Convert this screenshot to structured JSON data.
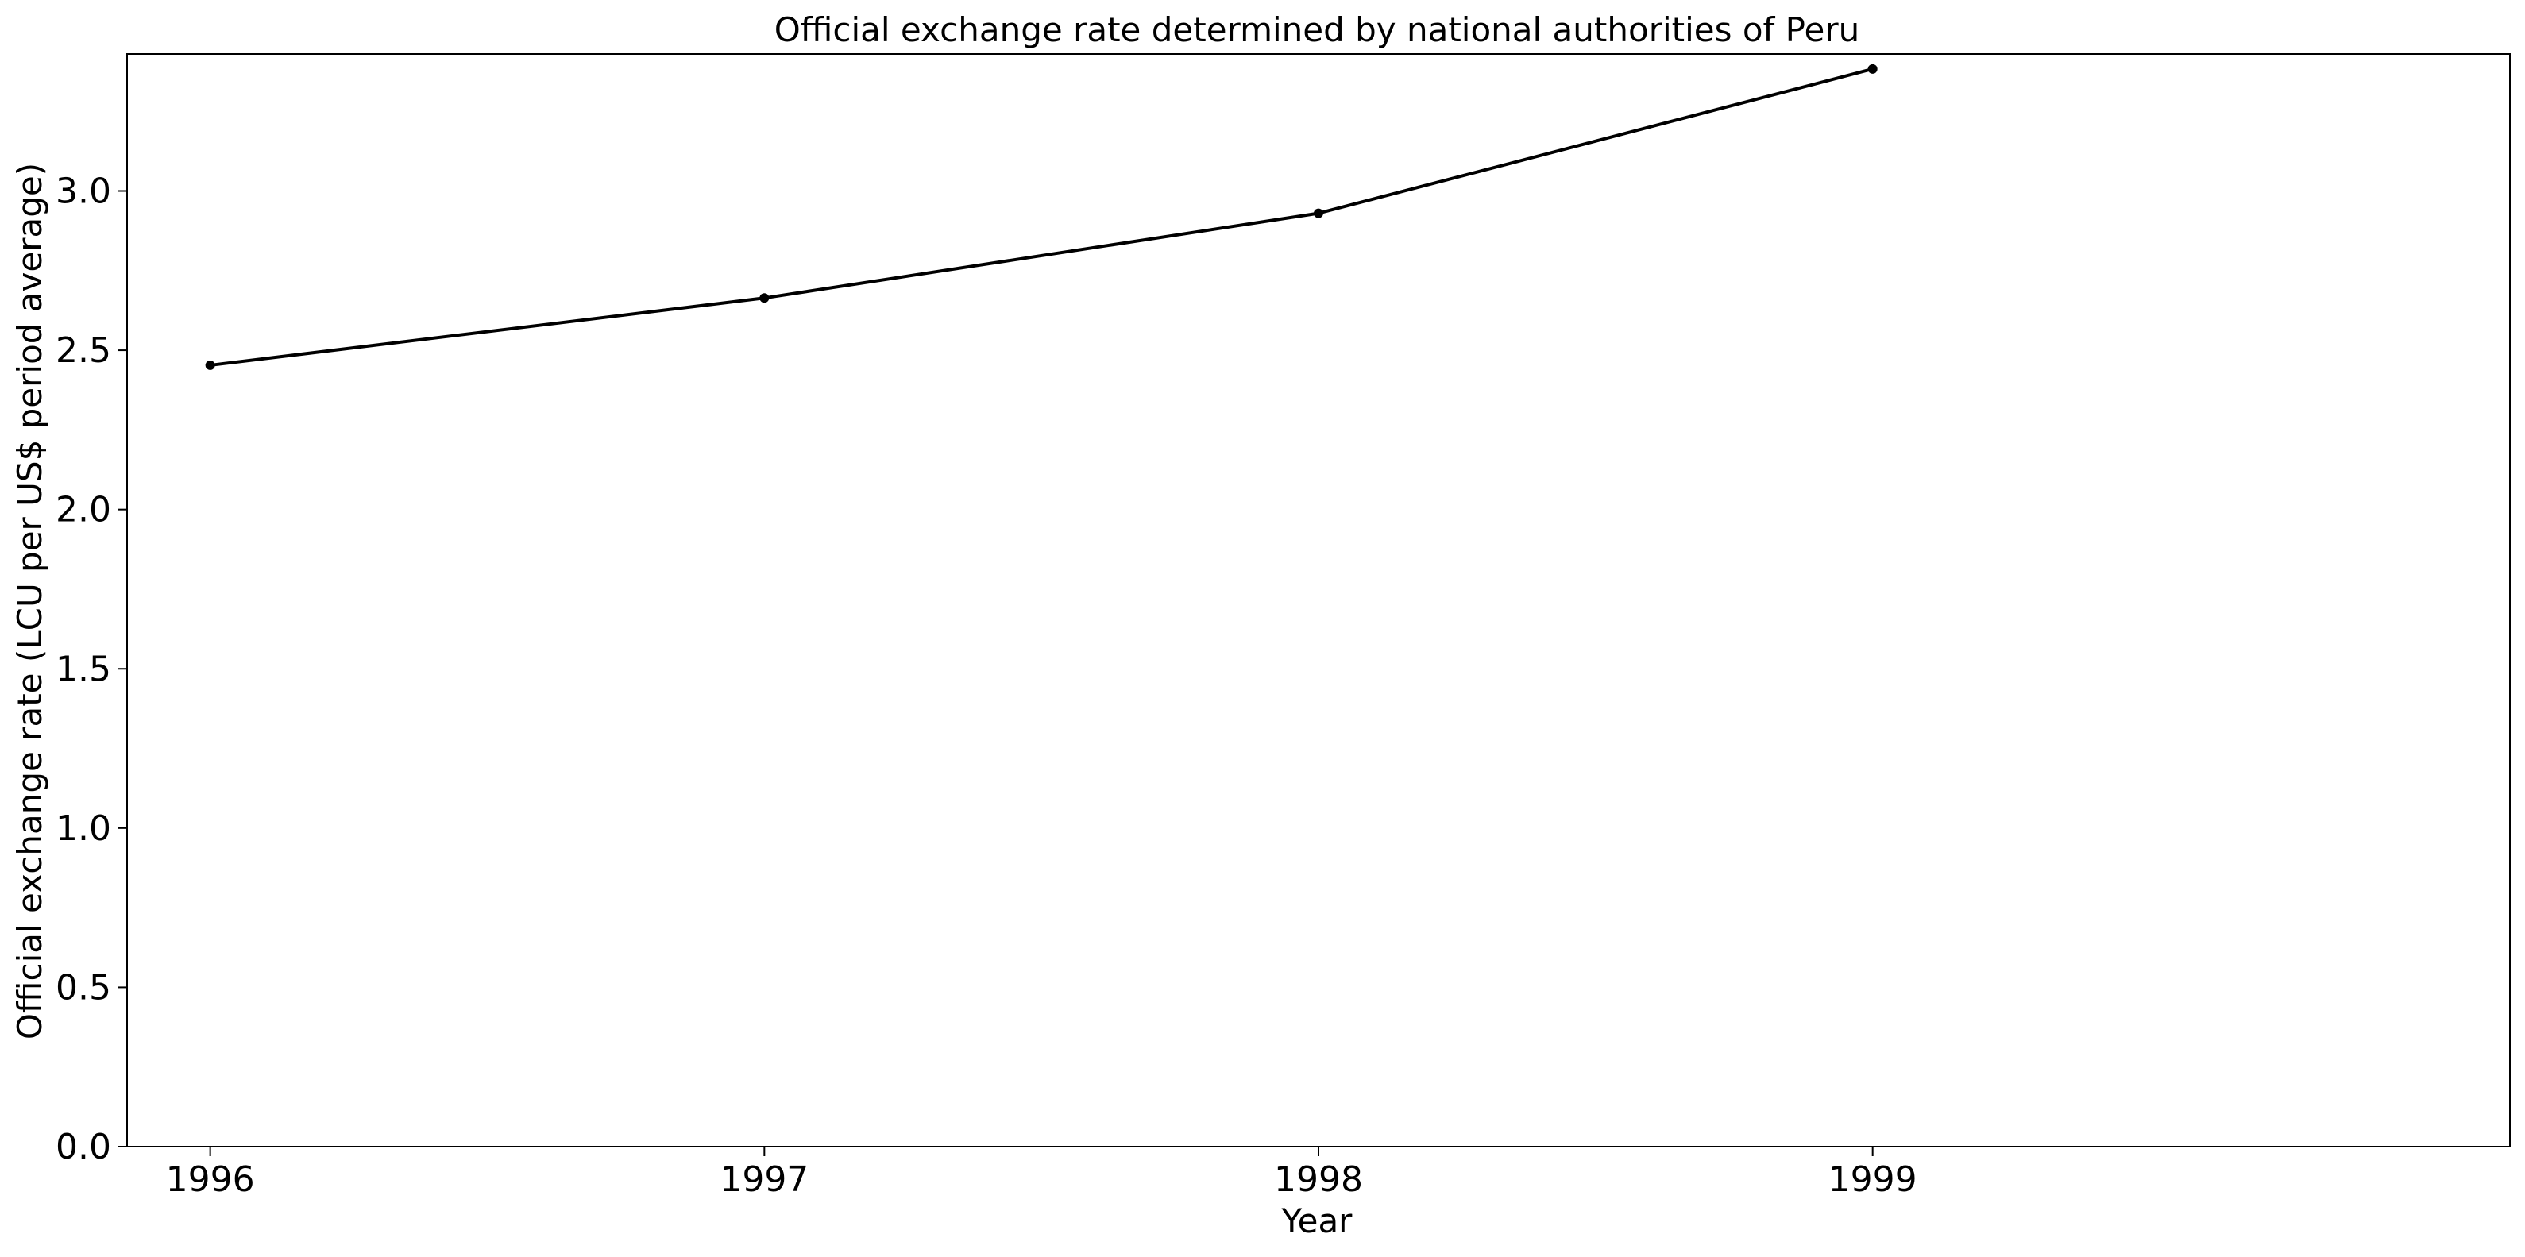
{
  "chart_data": {
    "type": "line",
    "title": "Official exchange rate determined by national authorities of Peru",
    "xlabel": "Year",
    "ylabel": "Official exchange rate (LCU per US$ period average)",
    "x": [
      "1996",
      "1997",
      "1998",
      "1999"
    ],
    "series": [
      {
        "values": [
          2.453,
          2.664,
          2.93,
          3.383
        ],
        "color": "#000000",
        "marker": "circle"
      }
    ],
    "xlim": [
      1995.85,
      2000.15
    ],
    "ylim": [
      0,
      3.43
    ],
    "yticks": [
      "0.0",
      "0.5",
      "1.0",
      "1.5",
      "2.0",
      "2.5",
      "3.0"
    ],
    "grid": false,
    "legend": "none"
  }
}
